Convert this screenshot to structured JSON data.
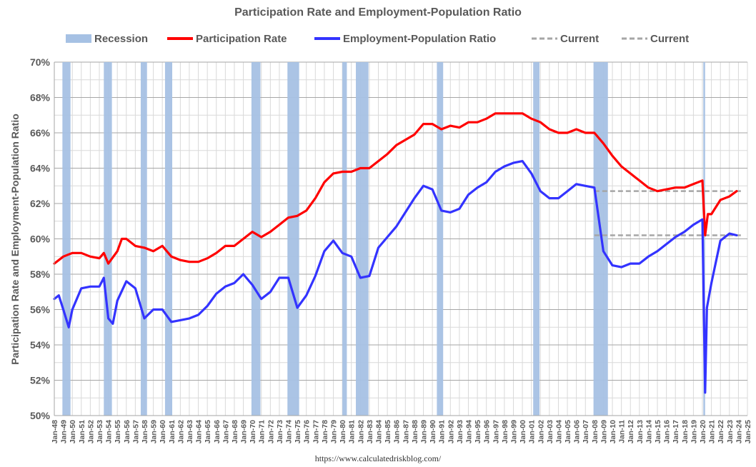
{
  "chart_data": {
    "type": "line",
    "title": "Participation Rate and Employment-Population Ratio",
    "ylabel": "Participation Rate and Employment-Population Ratio",
    "source": "https://www.calculatedriskblog.com/",
    "xlim": [
      1948.0,
      2025.0
    ],
    "ylim": [
      50,
      70
    ],
    "y_ticks": [
      "50%",
      "52%",
      "54%",
      "56%",
      "58%",
      "60%",
      "62%",
      "64%",
      "66%",
      "68%",
      "70%"
    ],
    "x_ticks": [
      "Jan-48",
      "Jan-49",
      "Jan-50",
      "Jan-51",
      "Jan-52",
      "Jan-53",
      "Jan-54",
      "Jan-55",
      "Jan-56",
      "Jan-57",
      "Jan-58",
      "Jan-59",
      "Jan-60",
      "Jan-61",
      "Jan-62",
      "Jan-63",
      "Jan-64",
      "Jan-65",
      "Jan-66",
      "Jan-67",
      "Jan-68",
      "Jan-69",
      "Jan-70",
      "Jan-71",
      "Jan-72",
      "Jan-73",
      "Jan-74",
      "Jan-75",
      "Jan-76",
      "Jan-77",
      "Jan-78",
      "Jan-79",
      "Jan-80",
      "Jan-81",
      "Jan-82",
      "Jan-83",
      "Jan-84",
      "Jan-85",
      "Jan-86",
      "Jan-87",
      "Jan-88",
      "Jan-89",
      "Jan-90",
      "Jan-91",
      "Jan-92",
      "Jan-93",
      "Jan-94",
      "Jan-95",
      "Jan-96",
      "Jan-97",
      "Jan-98",
      "Jan-99",
      "Jan-00",
      "Jan-01",
      "Jan-02",
      "Jan-03",
      "Jan-04",
      "Jan-05",
      "Jan-06",
      "Jan-07",
      "Jan-08",
      "Jan-09",
      "Jan-10",
      "Jan-11",
      "Jan-12",
      "Jan-13",
      "Jan-14",
      "Jan-15",
      "Jan-16",
      "Jan-17",
      "Jan-18",
      "Jan-19",
      "Jan-20",
      "Jan-21",
      "Jan-22",
      "Jan-23",
      "Jan-24",
      "Jan-25"
    ],
    "legend": {
      "placement": "top",
      "items": [
        {
          "label": "Recession",
          "color": "#a6c1e4",
          "style": "bar"
        },
        {
          "label": "Participation Rate",
          "color": "#ff0000",
          "style": "line"
        },
        {
          "label": "Employment-Population Ratio",
          "color": "#3333ff",
          "style": "line"
        },
        {
          "label": "Current",
          "color": "#a6a6a6",
          "style": "dash"
        },
        {
          "label": "Current",
          "color": "#a6a6a6",
          "style": "dash"
        }
      ]
    },
    "recessions": [
      [
        1948.9,
        1949.8
      ],
      [
        1953.5,
        1954.4
      ],
      [
        1957.6,
        1958.3
      ],
      [
        1960.3,
        1961.1
      ],
      [
        1969.9,
        1970.9
      ],
      [
        1973.9,
        1975.2
      ],
      [
        1980.0,
        1980.5
      ],
      [
        1981.5,
        1982.9
      ],
      [
        1990.5,
        1991.2
      ],
      [
        2001.2,
        2001.9
      ],
      [
        2007.9,
        2009.5
      ],
      [
        2020.1,
        2020.3
      ]
    ],
    "current_lines": [
      {
        "label": "Current",
        "value": 62.7,
        "x_start": 2008.0
      },
      {
        "label": "Current",
        "value": 60.2,
        "x_start": 2008.0
      }
    ],
    "series": [
      {
        "name": "Participation Rate",
        "color": "#ff0000",
        "x": [
          1948.0,
          1949.0,
          1950.0,
          1951.0,
          1952.0,
          1953.0,
          1953.5,
          1954.0,
          1955.0,
          1955.5,
          1956.0,
          1957.0,
          1958.0,
          1959.0,
          1960.0,
          1961.0,
          1962.0,
          1963.0,
          1964.0,
          1965.0,
          1966.0,
          1967.0,
          1968.0,
          1969.0,
          1970.0,
          1971.0,
          1972.0,
          1973.0,
          1974.0,
          1975.0,
          1976.0,
          1977.0,
          1978.0,
          1979.0,
          1980.0,
          1981.0,
          1982.0,
          1983.0,
          1984.0,
          1985.0,
          1986.0,
          1987.0,
          1988.0,
          1989.0,
          1990.0,
          1991.0,
          1992.0,
          1993.0,
          1994.0,
          1995.0,
          1996.0,
          1997.0,
          1998.0,
          1999.0,
          2000.0,
          2001.0,
          2002.0,
          2003.0,
          2004.0,
          2005.0,
          2006.0,
          2007.0,
          2008.0,
          2009.0,
          2010.0,
          2011.0,
          2012.0,
          2013.0,
          2014.0,
          2015.0,
          2016.0,
          2017.0,
          2018.0,
          2019.0,
          2020.0,
          2020.3,
          2020.6,
          2021.0,
          2022.0,
          2023.0,
          2023.8
        ],
        "values": [
          58.6,
          59.0,
          59.2,
          59.2,
          59.0,
          58.9,
          59.2,
          58.6,
          59.3,
          60.0,
          60.0,
          59.6,
          59.5,
          59.3,
          59.6,
          59.0,
          58.8,
          58.7,
          58.7,
          58.9,
          59.2,
          59.6,
          59.6,
          60.0,
          60.4,
          60.1,
          60.4,
          60.8,
          61.2,
          61.3,
          61.6,
          62.3,
          63.2,
          63.7,
          63.8,
          63.8,
          64.0,
          64.0,
          64.4,
          64.8,
          65.3,
          65.6,
          65.9,
          66.5,
          66.5,
          66.2,
          66.4,
          66.3,
          66.6,
          66.6,
          66.8,
          67.1,
          67.1,
          67.1,
          67.1,
          66.8,
          66.6,
          66.2,
          66.0,
          66.0,
          66.2,
          66.0,
          66.0,
          65.4,
          64.7,
          64.1,
          63.7,
          63.3,
          62.9,
          62.7,
          62.8,
          62.9,
          62.9,
          63.1,
          63.3,
          60.2,
          61.4,
          61.4,
          62.2,
          62.4,
          62.7
        ]
      },
      {
        "name": "Employment-Population Ratio",
        "color": "#3333ff",
        "x": [
          1948.0,
          1948.5,
          1949.0,
          1949.6,
          1950.0,
          1951.0,
          1952.0,
          1953.0,
          1953.5,
          1954.0,
          1954.5,
          1955.0,
          1956.0,
          1957.0,
          1958.0,
          1959.0,
          1960.0,
          1961.0,
          1962.0,
          1963.0,
          1964.0,
          1965.0,
          1966.0,
          1967.0,
          1968.0,
          1969.0,
          1970.0,
          1971.0,
          1972.0,
          1973.0,
          1974.0,
          1975.0,
          1976.0,
          1977.0,
          1978.0,
          1979.0,
          1980.0,
          1981.0,
          1982.0,
          1983.0,
          1984.0,
          1985.0,
          1986.0,
          1987.0,
          1988.0,
          1989.0,
          1990.0,
          1991.0,
          1992.0,
          1993.0,
          1994.0,
          1995.0,
          1996.0,
          1997.0,
          1998.0,
          1999.0,
          2000.0,
          2001.0,
          2002.0,
          2003.0,
          2004.0,
          2005.0,
          2006.0,
          2007.0,
          2008.0,
          2009.0,
          2010.0,
          2011.0,
          2012.0,
          2013.0,
          2014.0,
          2015.0,
          2016.0,
          2017.0,
          2018.0,
          2019.0,
          2020.0,
          2020.3,
          2020.5,
          2021.0,
          2022.0,
          2023.0,
          2023.8
        ],
        "values": [
          56.6,
          56.8,
          56.0,
          55.0,
          56.0,
          57.2,
          57.3,
          57.3,
          57.8,
          55.5,
          55.2,
          56.5,
          57.6,
          57.2,
          55.5,
          56.0,
          56.0,
          55.3,
          55.4,
          55.5,
          55.7,
          56.2,
          56.9,
          57.3,
          57.5,
          58.0,
          57.4,
          56.6,
          57.0,
          57.8,
          57.8,
          56.1,
          56.8,
          57.9,
          59.3,
          59.9,
          59.2,
          59.0,
          57.8,
          57.9,
          59.5,
          60.1,
          60.7,
          61.5,
          62.3,
          63.0,
          62.8,
          61.6,
          61.5,
          61.7,
          62.5,
          62.9,
          63.2,
          63.8,
          64.1,
          64.3,
          64.4,
          63.7,
          62.7,
          62.3,
          62.3,
          62.7,
          63.1,
          63.0,
          62.9,
          59.3,
          58.5,
          58.4,
          58.6,
          58.6,
          59.0,
          59.3,
          59.7,
          60.1,
          60.4,
          60.8,
          61.1,
          51.3,
          56.1,
          57.5,
          59.9,
          60.3,
          60.2
        ]
      }
    ]
  }
}
